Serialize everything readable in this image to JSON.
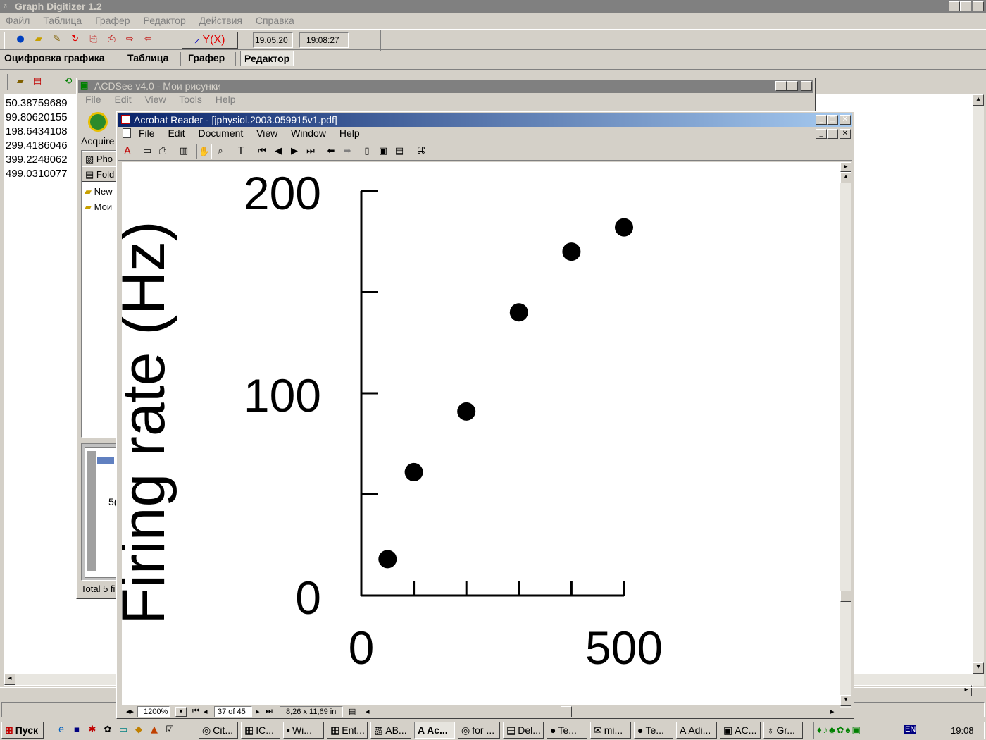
{
  "gd": {
    "title": "Graph Digitizer 1.2",
    "menu": [
      "Файл",
      "Таблица",
      "Графер",
      "Редактор",
      "Действия",
      "Справка"
    ],
    "date": "19.05.20",
    "time": "19:08:27",
    "yx_label": "Y(X)",
    "tabs": [
      "Оцифровка графика",
      "Таблица",
      "Графер",
      "Редактор"
    ],
    "active_tab": "Редактор",
    "values": [
      "50.38759689",
      "99.80620155",
      "198.6434108",
      "299.4186046",
      "399.2248062",
      "499.0310077"
    ]
  },
  "acdsee": {
    "title": "ACDSee v4.0 - Мои рисунки",
    "menu": [
      "File",
      "Edit",
      "View",
      "Tools",
      "Help"
    ],
    "acquire": "Acquire",
    "tree": [
      "Pho",
      "Fold"
    ],
    "folders": [
      "New",
      "Мои"
    ],
    "thumb_label": "5(",
    "total": "Total 5 fi"
  },
  "acrobat": {
    "title": "Acrobat Reader - [jphysiol.2003.059915v1.pdf]",
    "menu": [
      "File",
      "Edit",
      "Document",
      "View",
      "Window",
      "Help"
    ],
    "zoom": "1200%",
    "page": "37 of 45",
    "pagesize": "8,26 x 11,69 in"
  },
  "chart_data": {
    "type": "scatter",
    "ylabel": "Firing rate (Hz)",
    "xlabel": "",
    "x_ticks": [
      "0",
      "500"
    ],
    "y_ticks": [
      "0",
      "100",
      "200"
    ],
    "xlim": [
      0,
      500
    ],
    "ylim": [
      0,
      200
    ],
    "points": [
      {
        "x": 50,
        "y": 18
      },
      {
        "x": 100,
        "y": 61
      },
      {
        "x": 200,
        "y": 91
      },
      {
        "x": 300,
        "y": 140
      },
      {
        "x": 400,
        "y": 170
      },
      {
        "x": 500,
        "y": 182
      }
    ]
  },
  "taskbar": {
    "start": "Пуск",
    "items": [
      "Cit...",
      "IC...",
      "Wi...",
      "Ent...",
      "AB...",
      "Ac...",
      "for ...",
      "Del...",
      "Te...",
      "mi...",
      "Te...",
      "Adi...",
      "AC...",
      "Gr..."
    ],
    "lang": "EN",
    "clock": "19:08"
  }
}
